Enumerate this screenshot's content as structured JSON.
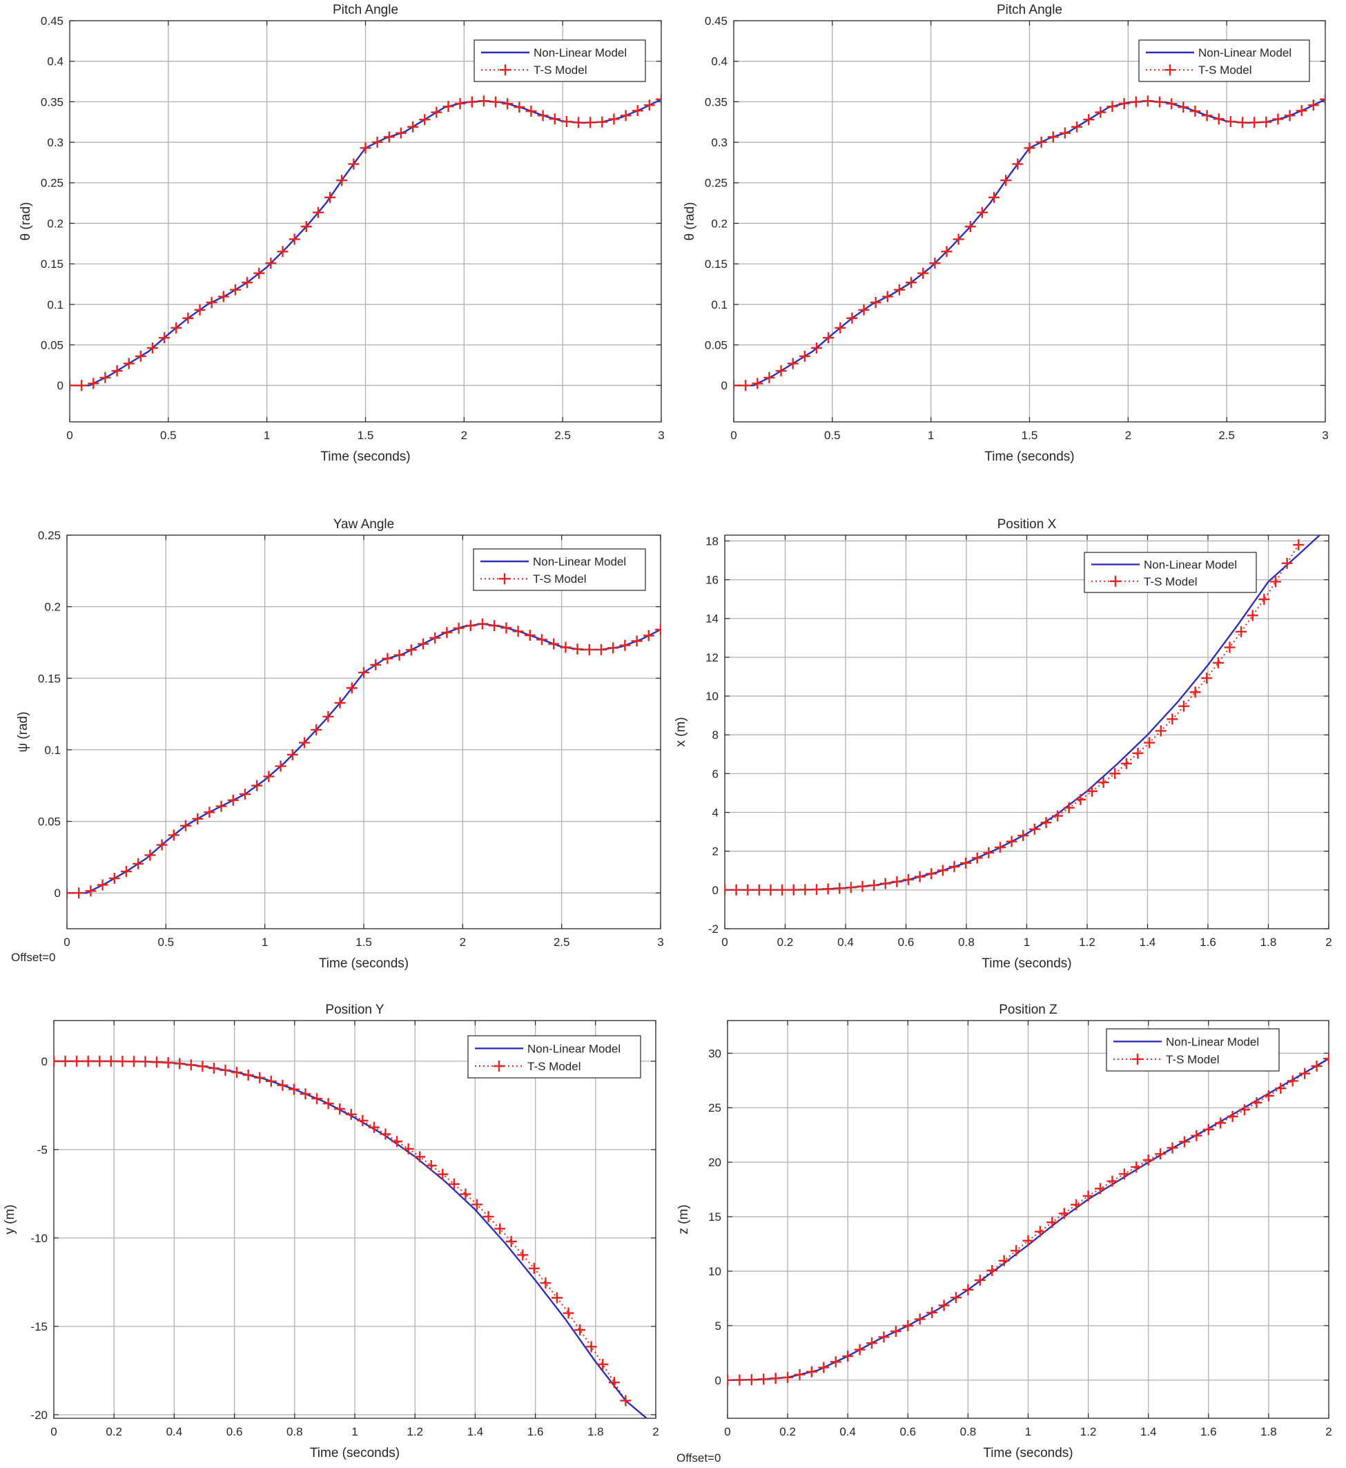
{
  "colors": {
    "nonlinear": "#2e2eb8",
    "ts": "#e8221c",
    "grid": "#b0b0b0",
    "axis": "#262626"
  },
  "notes": {
    "offset_label": "Offset=0"
  },
  "chart_data": [
    {
      "id": "pitch1",
      "type": "line",
      "title": "Pitch Angle",
      "xlabel": "Time (seconds)",
      "ylabel": "θ (rad)",
      "xlim": [
        0,
        3
      ],
      "ylim": [
        -0.045,
        0.45
      ],
      "xticks": [
        0,
        0.5,
        1,
        1.5,
        2,
        2.5,
        3
      ],
      "yticks": [
        0,
        0.05,
        0.1,
        0.15,
        0.2,
        0.25,
        0.3,
        0.35,
        0.4,
        0.45
      ],
      "tick_labels_y": [
        "0",
        "0.05",
        "0.1",
        "0.15",
        "0.2",
        "0.25",
        "0.3",
        "0.35",
        "0.4",
        "0.45"
      ],
      "tick_labels_x": [
        "0",
        "0.5",
        "1",
        "1.5",
        "2",
        "2.5",
        "3"
      ],
      "legend": [
        "Non-Linear Model",
        "T-S Model"
      ],
      "legend_position": "top-right",
      "series": [
        {
          "name": "Non-Linear Model",
          "x": [
            0,
            0.1,
            0.2,
            0.3,
            0.4,
            0.5,
            0.6,
            0.7,
            0.8,
            0.9,
            1.0,
            1.1,
            1.2,
            1.3,
            1.4,
            1.5,
            1.6,
            1.7,
            1.8,
            1.9,
            2.0,
            2.1,
            2.2,
            2.3,
            2.4,
            2.5,
            2.6,
            2.7,
            2.8,
            2.9,
            3.0
          ],
          "y": [
            0,
            0,
            0.012,
            0.027,
            0.042,
            0.063,
            0.083,
            0.1,
            0.112,
            0.127,
            0.146,
            0.17,
            0.196,
            0.225,
            0.26,
            0.293,
            0.305,
            0.313,
            0.328,
            0.343,
            0.349,
            0.351,
            0.349,
            0.342,
            0.333,
            0.326,
            0.324,
            0.325,
            0.331,
            0.341,
            0.353
          ]
        },
        {
          "name": "T-S Model",
          "x": [
            0,
            0.1,
            0.2,
            0.3,
            0.4,
            0.5,
            0.6,
            0.7,
            0.8,
            0.9,
            1.0,
            1.1,
            1.2,
            1.3,
            1.4,
            1.5,
            1.6,
            1.7,
            1.8,
            1.9,
            2.0,
            2.1,
            2.2,
            2.3,
            2.4,
            2.5,
            2.6,
            2.7,
            2.8,
            2.9,
            3.0
          ],
          "y": [
            0,
            0,
            0.012,
            0.027,
            0.042,
            0.063,
            0.083,
            0.1,
            0.112,
            0.127,
            0.146,
            0.17,
            0.196,
            0.225,
            0.26,
            0.293,
            0.305,
            0.313,
            0.328,
            0.343,
            0.349,
            0.351,
            0.349,
            0.342,
            0.333,
            0.326,
            0.324,
            0.325,
            0.331,
            0.341,
            0.353
          ]
        }
      ]
    },
    {
      "id": "pitch2",
      "type": "line",
      "title": "Pitch Angle",
      "xlabel": "Time (seconds)",
      "ylabel": "θ (rad)",
      "xlim": [
        0,
        3
      ],
      "ylim": [
        -0.045,
        0.45
      ],
      "xticks": [
        0,
        0.5,
        1,
        1.5,
        2,
        2.5,
        3
      ],
      "yticks": [
        0,
        0.05,
        0.1,
        0.15,
        0.2,
        0.25,
        0.3,
        0.35,
        0.4,
        0.45
      ],
      "tick_labels_y": [
        "0",
        "0.05",
        "0.1",
        "0.15",
        "0.2",
        "0.25",
        "0.3",
        "0.35",
        "0.4",
        "0.45"
      ],
      "tick_labels_x": [
        "0",
        "0.5",
        "1",
        "1.5",
        "2",
        "2.5",
        "3"
      ],
      "legend": [
        "Non-Linear Model",
        "T-S Model"
      ],
      "legend_position": "top-right",
      "series": [
        {
          "name": "Non-Linear Model",
          "x": [
            0,
            0.1,
            0.2,
            0.3,
            0.4,
            0.5,
            0.6,
            0.7,
            0.8,
            0.9,
            1.0,
            1.1,
            1.2,
            1.3,
            1.4,
            1.5,
            1.6,
            1.7,
            1.8,
            1.9,
            2.0,
            2.1,
            2.2,
            2.3,
            2.4,
            2.5,
            2.6,
            2.7,
            2.8,
            2.9,
            3.0
          ],
          "y": [
            0,
            0,
            0.012,
            0.027,
            0.042,
            0.063,
            0.083,
            0.1,
            0.112,
            0.127,
            0.146,
            0.17,
            0.196,
            0.225,
            0.26,
            0.293,
            0.305,
            0.313,
            0.328,
            0.343,
            0.349,
            0.351,
            0.349,
            0.342,
            0.333,
            0.326,
            0.324,
            0.325,
            0.331,
            0.341,
            0.353
          ]
        },
        {
          "name": "T-S Model",
          "x": [
            0,
            0.1,
            0.2,
            0.3,
            0.4,
            0.5,
            0.6,
            0.7,
            0.8,
            0.9,
            1.0,
            1.1,
            1.2,
            1.3,
            1.4,
            1.5,
            1.6,
            1.7,
            1.8,
            1.9,
            2.0,
            2.1,
            2.2,
            2.3,
            2.4,
            2.5,
            2.6,
            2.7,
            2.8,
            2.9,
            3.0
          ],
          "y": [
            0,
            0,
            0.012,
            0.027,
            0.042,
            0.063,
            0.083,
            0.1,
            0.112,
            0.127,
            0.146,
            0.17,
            0.196,
            0.225,
            0.26,
            0.293,
            0.305,
            0.313,
            0.328,
            0.343,
            0.349,
            0.351,
            0.349,
            0.342,
            0.333,
            0.326,
            0.324,
            0.325,
            0.331,
            0.341,
            0.353
          ]
        }
      ]
    },
    {
      "id": "yaw",
      "type": "line",
      "title": "Yaw Angle",
      "xlabel": "Time (seconds)",
      "ylabel": "ψ (rad)",
      "xlim": [
        0,
        3
      ],
      "ylim": [
        -0.025,
        0.25
      ],
      "xticks": [
        0,
        0.5,
        1,
        1.5,
        2,
        2.5,
        3
      ],
      "yticks": [
        0,
        0.05,
        0.1,
        0.15,
        0.2,
        0.25
      ],
      "tick_labels_y": [
        "0",
        "0.05",
        "0.1",
        "0.15",
        "0.2",
        "0.25"
      ],
      "tick_labels_x": [
        "0",
        "0.5",
        "1",
        "1.5",
        "2",
        "2.5",
        "3"
      ],
      "legend": [
        "Non-Linear Model",
        "T-S Model"
      ],
      "legend_position": "top-right",
      "series": [
        {
          "name": "Non-Linear Model",
          "x": [
            0,
            0.1,
            0.2,
            0.3,
            0.4,
            0.5,
            0.6,
            0.7,
            0.8,
            0.9,
            1.0,
            1.1,
            1.2,
            1.3,
            1.4,
            1.5,
            1.6,
            1.7,
            1.8,
            1.9,
            2.0,
            2.1,
            2.2,
            2.3,
            2.4,
            2.5,
            2.6,
            2.7,
            2.8,
            2.9,
            3.0
          ],
          "y": [
            0,
            0,
            0.007,
            0.015,
            0.024,
            0.036,
            0.047,
            0.055,
            0.062,
            0.069,
            0.079,
            0.091,
            0.105,
            0.12,
            0.136,
            0.154,
            0.163,
            0.167,
            0.174,
            0.181,
            0.186,
            0.188,
            0.186,
            0.182,
            0.177,
            0.172,
            0.17,
            0.17,
            0.172,
            0.177,
            0.184
          ]
        },
        {
          "name": "T-S Model",
          "x": [
            0,
            0.1,
            0.2,
            0.3,
            0.4,
            0.5,
            0.6,
            0.7,
            0.8,
            0.9,
            1.0,
            1.1,
            1.2,
            1.3,
            1.4,
            1.5,
            1.6,
            1.7,
            1.8,
            1.9,
            2.0,
            2.1,
            2.2,
            2.3,
            2.4,
            2.5,
            2.6,
            2.7,
            2.8,
            2.9,
            3.0
          ],
          "y": [
            0,
            0,
            0.007,
            0.015,
            0.024,
            0.036,
            0.047,
            0.055,
            0.062,
            0.069,
            0.079,
            0.091,
            0.105,
            0.12,
            0.136,
            0.154,
            0.163,
            0.167,
            0.174,
            0.181,
            0.186,
            0.188,
            0.186,
            0.182,
            0.177,
            0.172,
            0.17,
            0.17,
            0.172,
            0.177,
            0.184
          ]
        }
      ]
    },
    {
      "id": "posx",
      "type": "line",
      "title": "Position X",
      "xlabel": "Time (seconds)",
      "ylabel": "x (m)",
      "xlim": [
        0,
        2
      ],
      "ylim": [
        -2,
        18.3
      ],
      "xticks": [
        0,
        0.2,
        0.4,
        0.6,
        0.8,
        1,
        1.2,
        1.4,
        1.6,
        1.8,
        2
      ],
      "yticks": [
        -2,
        0,
        2,
        4,
        6,
        8,
        10,
        12,
        14,
        16,
        18
      ],
      "tick_labels_y": [
        "-2",
        "0",
        "2",
        "4",
        "6",
        "8",
        "10",
        "12",
        "14",
        "16",
        "18"
      ],
      "tick_labels_x": [
        "0",
        "0.2",
        "0.4",
        "0.6",
        "0.8",
        "1",
        "1.2",
        "1.4",
        "1.6",
        "1.8",
        "2"
      ],
      "legend": [
        "Non-Linear Model",
        "T-S Model"
      ],
      "legend_position": "top-right",
      "series": [
        {
          "name": "Non-Linear Model",
          "x": [
            0,
            0.1,
            0.2,
            0.3,
            0.4,
            0.5,
            0.6,
            0.7,
            0.8,
            0.9,
            1.0,
            1.1,
            1.2,
            1.3,
            1.4,
            1.5,
            1.6,
            1.7,
            1.8,
            1.9,
            1.97
          ],
          "y": [
            0,
            0,
            0,
            0.02,
            0.1,
            0.25,
            0.5,
            0.9,
            1.4,
            2.1,
            2.9,
            3.9,
            5.1,
            6.5,
            8.0,
            9.7,
            11.6,
            13.7,
            15.9,
            17.3,
            18.3
          ]
        },
        {
          "name": "T-S Model",
          "x": [
            0,
            0.1,
            0.2,
            0.3,
            0.4,
            0.5,
            0.6,
            0.7,
            0.8,
            0.9,
            1.0,
            1.1,
            1.2,
            1.3,
            1.4,
            1.5,
            1.6,
            1.7,
            1.8,
            1.9
          ],
          "y": [
            0,
            0,
            0,
            0.02,
            0.1,
            0.25,
            0.5,
            0.9,
            1.4,
            2.1,
            2.9,
            3.8,
            4.9,
            6.1,
            7.5,
            9.1,
            11.0,
            13.1,
            15.3,
            17.8
          ]
        }
      ]
    },
    {
      "id": "posy",
      "type": "line",
      "title": "Position Y",
      "xlabel": "Time (seconds)",
      "ylabel": "y (m)",
      "xlim": [
        0,
        2
      ],
      "ylim": [
        -20.2,
        2.3
      ],
      "xticks": [
        0,
        0.2,
        0.4,
        0.6,
        0.8,
        1,
        1.2,
        1.4,
        1.6,
        1.8,
        2
      ],
      "yticks": [
        -20,
        -15,
        -10,
        -5,
        0
      ],
      "tick_labels_y": [
        "-20",
        "-15",
        "-10",
        "-5",
        "0"
      ],
      "tick_labels_x": [
        "0",
        "0.2",
        "0.4",
        "0.6",
        "0.8",
        "1",
        "1.2",
        "1.4",
        "1.6",
        "1.8",
        "2"
      ],
      "legend": [
        "Non-Linear Model",
        "T-S Model"
      ],
      "legend_position": "top-right",
      "series": [
        {
          "name": "Non-Linear Model",
          "x": [
            0,
            0.1,
            0.2,
            0.3,
            0.4,
            0.5,
            0.6,
            0.7,
            0.8,
            0.9,
            1.0,
            1.1,
            1.2,
            1.3,
            1.4,
            1.5,
            1.6,
            1.7,
            1.8,
            1.9,
            1.97
          ],
          "y": [
            0,
            0,
            0,
            -0.02,
            -0.1,
            -0.3,
            -0.6,
            -1.0,
            -1.6,
            -2.3,
            -3.2,
            -4.2,
            -5.4,
            -6.8,
            -8.4,
            -10.3,
            -12.4,
            -14.6,
            -17.0,
            -19.2,
            -20.2
          ]
        },
        {
          "name": "T-S Model",
          "x": [
            0,
            0.1,
            0.2,
            0.3,
            0.4,
            0.5,
            0.6,
            0.7,
            0.8,
            0.9,
            1.0,
            1.1,
            1.2,
            1.3,
            1.4,
            1.5,
            1.6,
            1.7,
            1.8,
            1.9
          ],
          "y": [
            0,
            0,
            0,
            -0.02,
            -0.1,
            -0.3,
            -0.6,
            -1.0,
            -1.6,
            -2.3,
            -3.1,
            -4.1,
            -5.2,
            -6.5,
            -8.0,
            -9.8,
            -11.8,
            -14.0,
            -16.5,
            -19.2
          ]
        }
      ]
    },
    {
      "id": "posz",
      "type": "line",
      "title": "Position Z",
      "xlabel": "Time (seconds)",
      "ylabel": "z (m)",
      "xlim": [
        0,
        2
      ],
      "ylim": [
        -3.5,
        33
      ],
      "xticks": [
        0,
        0.2,
        0.4,
        0.6,
        0.8,
        1,
        1.2,
        1.4,
        1.6,
        1.8,
        2
      ],
      "yticks": [
        0,
        5,
        10,
        15,
        20,
        25,
        30
      ],
      "tick_labels_y": [
        "0",
        "5",
        "10",
        "15",
        "20",
        "25",
        "30"
      ],
      "tick_labels_x": [
        "0",
        "0.2",
        "0.4",
        "0.6",
        "0.8",
        "1",
        "1.2",
        "1.4",
        "1.6",
        "1.8",
        "2"
      ],
      "legend": [
        "Non-Linear Model",
        "T-S Model"
      ],
      "legend_position": "top-right",
      "series": [
        {
          "name": "Non-Linear Model",
          "x": [
            0,
            0.1,
            0.2,
            0.3,
            0.4,
            0.5,
            0.6,
            0.7,
            0.8,
            0.9,
            1.0,
            1.1,
            1.2,
            1.3,
            1.4,
            1.5,
            1.6,
            1.7,
            1.8,
            1.9,
            2.0
          ],
          "y": [
            0,
            0.05,
            0.25,
            0.9,
            2.2,
            3.7,
            5.0,
            6.5,
            8.3,
            10.3,
            12.4,
            14.6,
            16.6,
            18.3,
            20.0,
            21.6,
            23.1,
            24.7,
            26.3,
            27.9,
            29.5
          ]
        },
        {
          "name": "T-S Model",
          "x": [
            0,
            0.1,
            0.2,
            0.3,
            0.4,
            0.5,
            0.6,
            0.7,
            0.8,
            0.9,
            1.0,
            1.1,
            1.2,
            1.3,
            1.4,
            1.5,
            1.6,
            1.7,
            1.8,
            1.9,
            2.0
          ],
          "y": [
            0,
            0.05,
            0.25,
            0.9,
            2.2,
            3.7,
            5.0,
            6.5,
            8.3,
            10.5,
            12.8,
            14.9,
            16.9,
            18.6,
            20.2,
            21.6,
            23.0,
            24.5,
            26.1,
            27.8,
            29.5
          ]
        }
      ]
    }
  ]
}
